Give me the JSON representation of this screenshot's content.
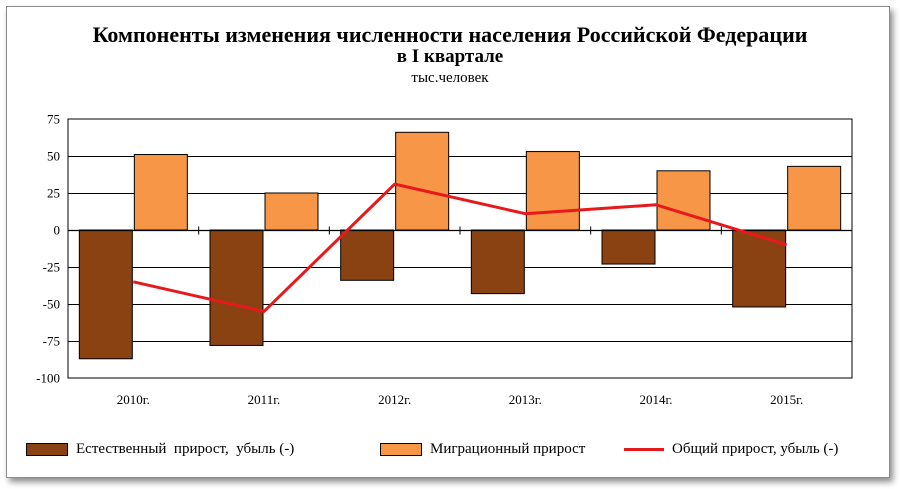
{
  "title": "Компоненты изменения численности населения Российской Федерации",
  "subtitle": "в I квартале",
  "units": "тыс.человек",
  "colors": {
    "natural": "#8b4212",
    "migration": "#f79646",
    "total": "#e8191c"
  },
  "legend": {
    "natural": "Естественный  прирост,  убыль (-)",
    "migration": "Миграционный прирост",
    "total": "Общий прирост, убыль (-)"
  },
  "chart_data": {
    "type": "bar",
    "categories": [
      "2010г.",
      "2011г.",
      "2012г.",
      "2013г.",
      "2014г.",
      "2015г."
    ],
    "series": [
      {
        "name": "Естественный  прирост,  убыль (-)",
        "type": "bar",
        "values": [
          -87,
          -78,
          -34,
          -43,
          -23,
          -52
        ]
      },
      {
        "name": "Миграционный прирост",
        "type": "bar",
        "values": [
          51,
          25,
          66,
          53,
          40,
          43
        ]
      },
      {
        "name": "Общий прирост, убыль (-)",
        "type": "line",
        "values": [
          -35,
          -55,
          31,
          11,
          17,
          -10
        ]
      }
    ],
    "yticks": [
      75,
      50,
      25,
      0,
      -25,
      -50,
      -75,
      -100
    ],
    "ytick_labels": [
      "75",
      "50",
      "25",
      "0",
      "-25",
      "-50",
      "-75",
      "-100"
    ],
    "ylim": [
      -100,
      75
    ],
    "grid": true,
    "legend_position": "bottom"
  }
}
